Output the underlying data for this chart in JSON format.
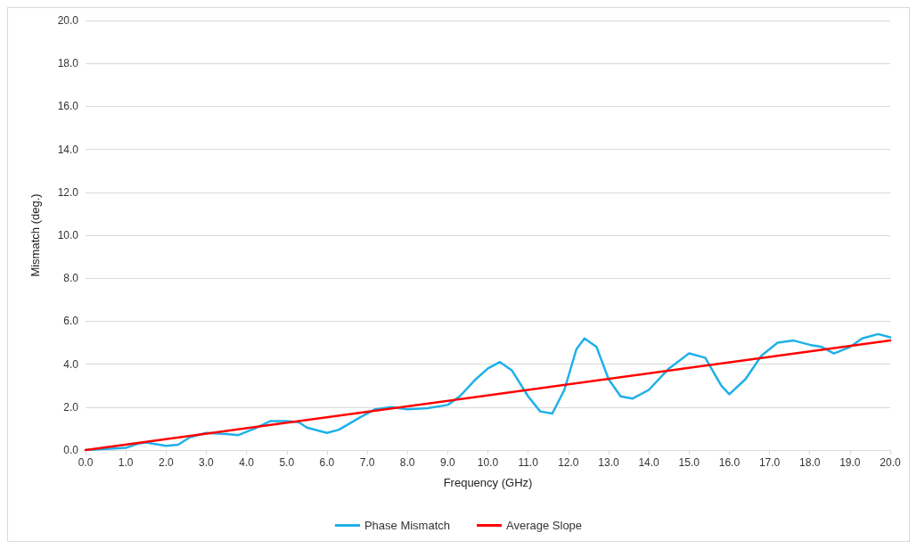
{
  "chart_data": {
    "type": "line",
    "xlabel": "Frequency (GHz)",
    "ylabel": "Mismatch (deg.)",
    "xlim": [
      0,
      20
    ],
    "xticks": [
      {
        "value": 0,
        "label": "0.0"
      },
      {
        "value": 1,
        "label": "1.0"
      },
      {
        "value": 2,
        "label": "2.0"
      },
      {
        "value": 3,
        "label": "3.0"
      },
      {
        "value": 4,
        "label": "4.0"
      },
      {
        "value": 5,
        "label": "5.0"
      },
      {
        "value": 6,
        "label": "6.0"
      },
      {
        "value": 7,
        "label": "7.0"
      },
      {
        "value": 8,
        "label": "8.0"
      },
      {
        "value": 9,
        "label": "9.0"
      },
      {
        "value": 10,
        "label": "10.0"
      },
      {
        "value": 11,
        "label": "11.0"
      },
      {
        "value": 12,
        "label": "12.0"
      },
      {
        "value": 13,
        "label": "13.0"
      },
      {
        "value": 14,
        "label": "14.0"
      },
      {
        "value": 15,
        "label": "15.0"
      },
      {
        "value": 16,
        "label": "16.0"
      },
      {
        "value": 17,
        "label": "17.0"
      },
      {
        "value": 18,
        "label": "18.0"
      },
      {
        "value": 19,
        "label": "19.0"
      },
      {
        "value": 20,
        "label": "20.0"
      }
    ],
    "ylim": [
      0,
      20
    ],
    "yticks": [
      {
        "value": 0,
        "label": "0.0"
      },
      {
        "value": 2,
        "label": "2.0"
      },
      {
        "value": 4,
        "label": "4.0"
      },
      {
        "value": 6,
        "label": "6.0"
      },
      {
        "value": 8,
        "label": "8.0"
      },
      {
        "value": 10,
        "label": "10.0"
      },
      {
        "value": 12,
        "label": "12.0"
      },
      {
        "value": 14,
        "label": "14.0"
      },
      {
        "value": 16,
        "label": "16.0"
      },
      {
        "value": 18,
        "label": "18.0"
      },
      {
        "value": 20,
        "label": "20.0"
      }
    ],
    "grid": "y",
    "legend": "bottom",
    "marker": "none",
    "line_style": "solid",
    "series": [
      {
        "name": "Phase Mismatch",
        "color": "#1fb0e8",
        "x": [
          0,
          0.5,
          1,
          1.3,
          1.5,
          2,
          2.3,
          2.6,
          3,
          3.5,
          3.8,
          4.2,
          4.6,
          5,
          5.3,
          5.5,
          6,
          6.3,
          6.8,
          7.2,
          7.6,
          8,
          8.5,
          9,
          9.3,
          9.7,
          10,
          10.3,
          10.6,
          11,
          11.3,
          11.6,
          11.9,
          12.2,
          12.4,
          12.7,
          13,
          13.3,
          13.6,
          14,
          14.5,
          15,
          15.4,
          15.8,
          16,
          16.4,
          16.8,
          17.2,
          17.6,
          18,
          18.3,
          18.6,
          19,
          19.3,
          19.7,
          20
        ],
        "values": [
          0,
          0.05,
          0.1,
          0.3,
          0.35,
          0.2,
          0.25,
          0.6,
          0.8,
          0.75,
          0.7,
          1.0,
          1.35,
          1.35,
          1.3,
          1.05,
          0.8,
          0.95,
          1.5,
          1.9,
          2.0,
          1.9,
          1.95,
          2.1,
          2.5,
          3.3,
          3.8,
          4.1,
          3.7,
          2.5,
          1.8,
          1.7,
          2.8,
          4.7,
          5.2,
          4.8,
          3.3,
          2.5,
          2.4,
          2.8,
          3.8,
          4.5,
          4.3,
          3.0,
          2.6,
          3.3,
          4.4,
          5.0,
          5.1,
          4.9,
          4.8,
          4.5,
          4.8,
          5.2,
          5.4,
          5.25
        ]
      },
      {
        "name": "Average Slope",
        "color": "#ff0000",
        "x": [
          0,
          20
        ],
        "values": [
          0,
          5.1
        ]
      }
    ]
  }
}
